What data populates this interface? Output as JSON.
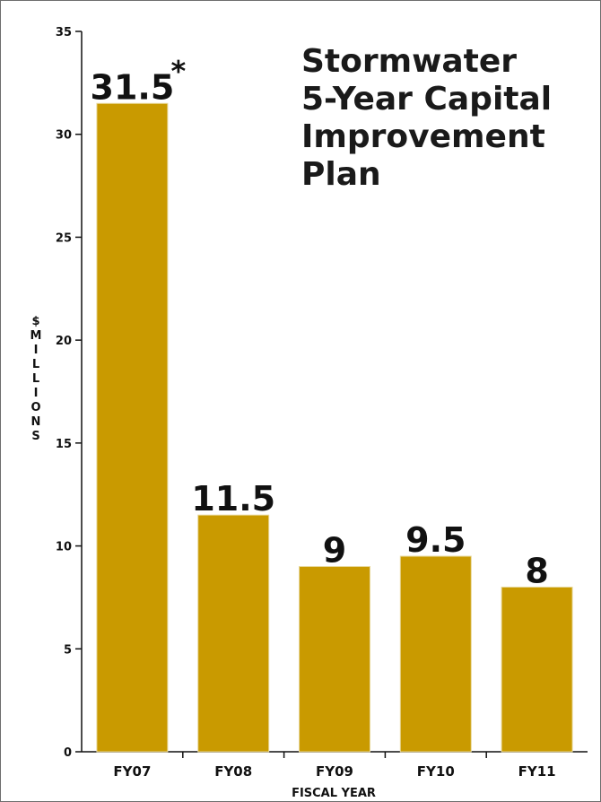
{
  "chart_data": {
    "type": "bar",
    "title_lines": [
      "Stormwater",
      "5-Year Capital",
      "Improvement",
      "Plan"
    ],
    "xlabel": "FISCAL YEAR",
    "ylabel": "$MILLIONS",
    "categories": [
      "FY07",
      "FY08",
      "FY09",
      "FY10",
      "FY11"
    ],
    "values": [
      31.5,
      11.5,
      9,
      9.5,
      8
    ],
    "data_labels": [
      "31.5",
      "11.5",
      "9",
      "9.5",
      "8"
    ],
    "annotation": "*",
    "ylim": [
      0,
      35
    ],
    "yticks": [
      0,
      5,
      10,
      15,
      20,
      25,
      30,
      35
    ],
    "bar_color": "#c99a00",
    "grid": false
  }
}
